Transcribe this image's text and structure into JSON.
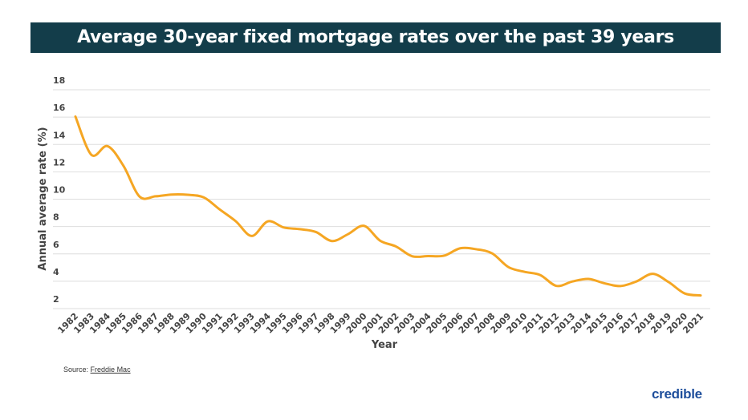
{
  "chart_data": {
    "type": "line",
    "title": "Average 30-year fixed mortgage rates over the past 39 years",
    "xlabel": "Year",
    "ylabel": "Annual average rate (%)",
    "ylim": [
      2,
      18
    ],
    "yticks": [
      2,
      4,
      6,
      8,
      10,
      12,
      14,
      16,
      18
    ],
    "grid": true,
    "line_color": "#f5a623",
    "x": [
      1982,
      1983,
      1984,
      1985,
      1986,
      1987,
      1988,
      1989,
      1990,
      1991,
      1992,
      1993,
      1994,
      1995,
      1996,
      1997,
      1998,
      1999,
      2000,
      2001,
      2002,
      2003,
      2004,
      2005,
      2006,
      2007,
      2008,
      2009,
      2010,
      2011,
      2012,
      2013,
      2014,
      2015,
      2016,
      2017,
      2018,
      2019,
      2020,
      2021
    ],
    "values": [
      16.04,
      13.24,
      13.88,
      12.43,
      10.19,
      10.21,
      10.34,
      10.32,
      10.13,
      9.25,
      8.39,
      7.31,
      8.38,
      7.93,
      7.81,
      7.6,
      6.94,
      7.44,
      8.05,
      6.97,
      6.54,
      5.83,
      5.84,
      5.87,
      6.41,
      6.34,
      6.03,
      5.04,
      4.69,
      4.45,
      3.66,
      3.98,
      4.17,
      3.85,
      3.65,
      3.99,
      4.54,
      3.94,
      3.11,
      2.96
    ]
  },
  "source": {
    "label": "Source:",
    "link": "Freddie Mac"
  },
  "logo": "credible",
  "colors": {
    "title_bg": "#133d4a",
    "line": "#f5a623",
    "logo": "#1f4f9c"
  }
}
